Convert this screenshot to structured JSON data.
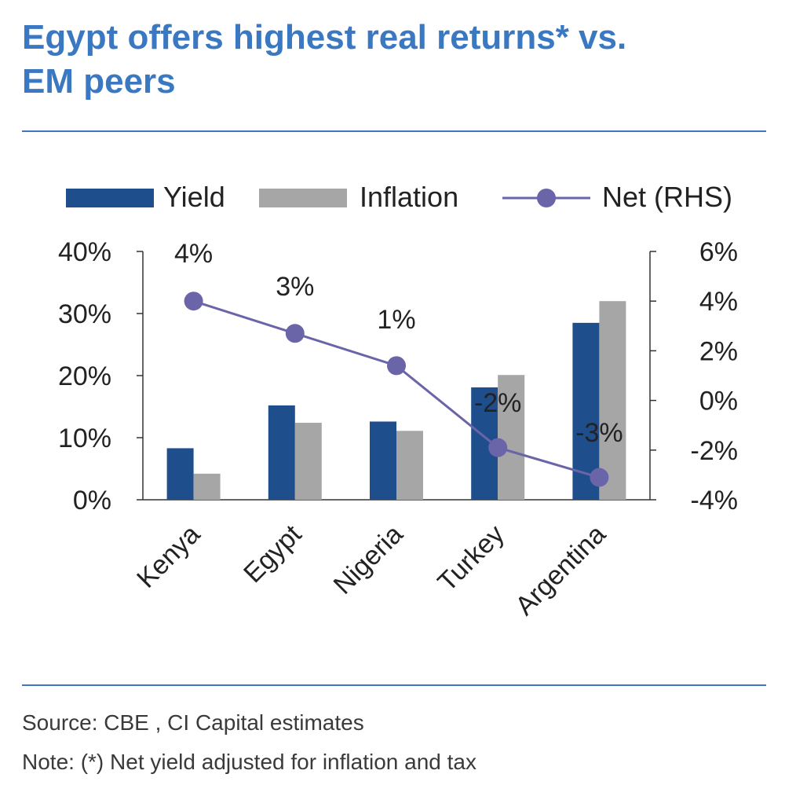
{
  "title_lines": [
    "Egypt offers highest real returns* vs.",
    "EM peers"
  ],
  "footer": {
    "source": "Source: CBE , CI Capital estimates",
    "note": "Note: (*) Net yield adjusted for inflation and tax"
  },
  "colors": {
    "yield": "#1f4e8c",
    "inflation": "#a6a6a6",
    "net": "#6a64a8",
    "accent": "#3b78c2",
    "axis": "#333333"
  },
  "chart_data": {
    "type": "bar",
    "categories": [
      "Kenya",
      "Egypt",
      "Nigeria",
      "Turkey",
      "Argentina"
    ],
    "series": [
      {
        "name": "Yield",
        "axis": "left",
        "values": [
          8.3,
          15.2,
          12.6,
          18.1,
          28.5
        ]
      },
      {
        "name": "Inflation",
        "axis": "left",
        "values": [
          4.2,
          12.4,
          11.1,
          20.1,
          32.0
        ]
      },
      {
        "name": "Net (RHS)",
        "axis": "right",
        "type": "line",
        "values": [
          4.0,
          2.7,
          1.4,
          -1.9,
          -3.1
        ],
        "labels": [
          "4%",
          "3%",
          "1%",
          "-2%",
          "-3%"
        ]
      }
    ],
    "left_axis": {
      "ticks": [
        "0%",
        "10%",
        "20%",
        "30%",
        "40%"
      ],
      "ylim": [
        0,
        40
      ]
    },
    "right_axis": {
      "ticks": [
        "-4%",
        "-2%",
        "0%",
        "2%",
        "4%",
        "6%"
      ],
      "ylim": [
        -4,
        6
      ]
    },
    "legend_position": "top",
    "grid": false
  }
}
